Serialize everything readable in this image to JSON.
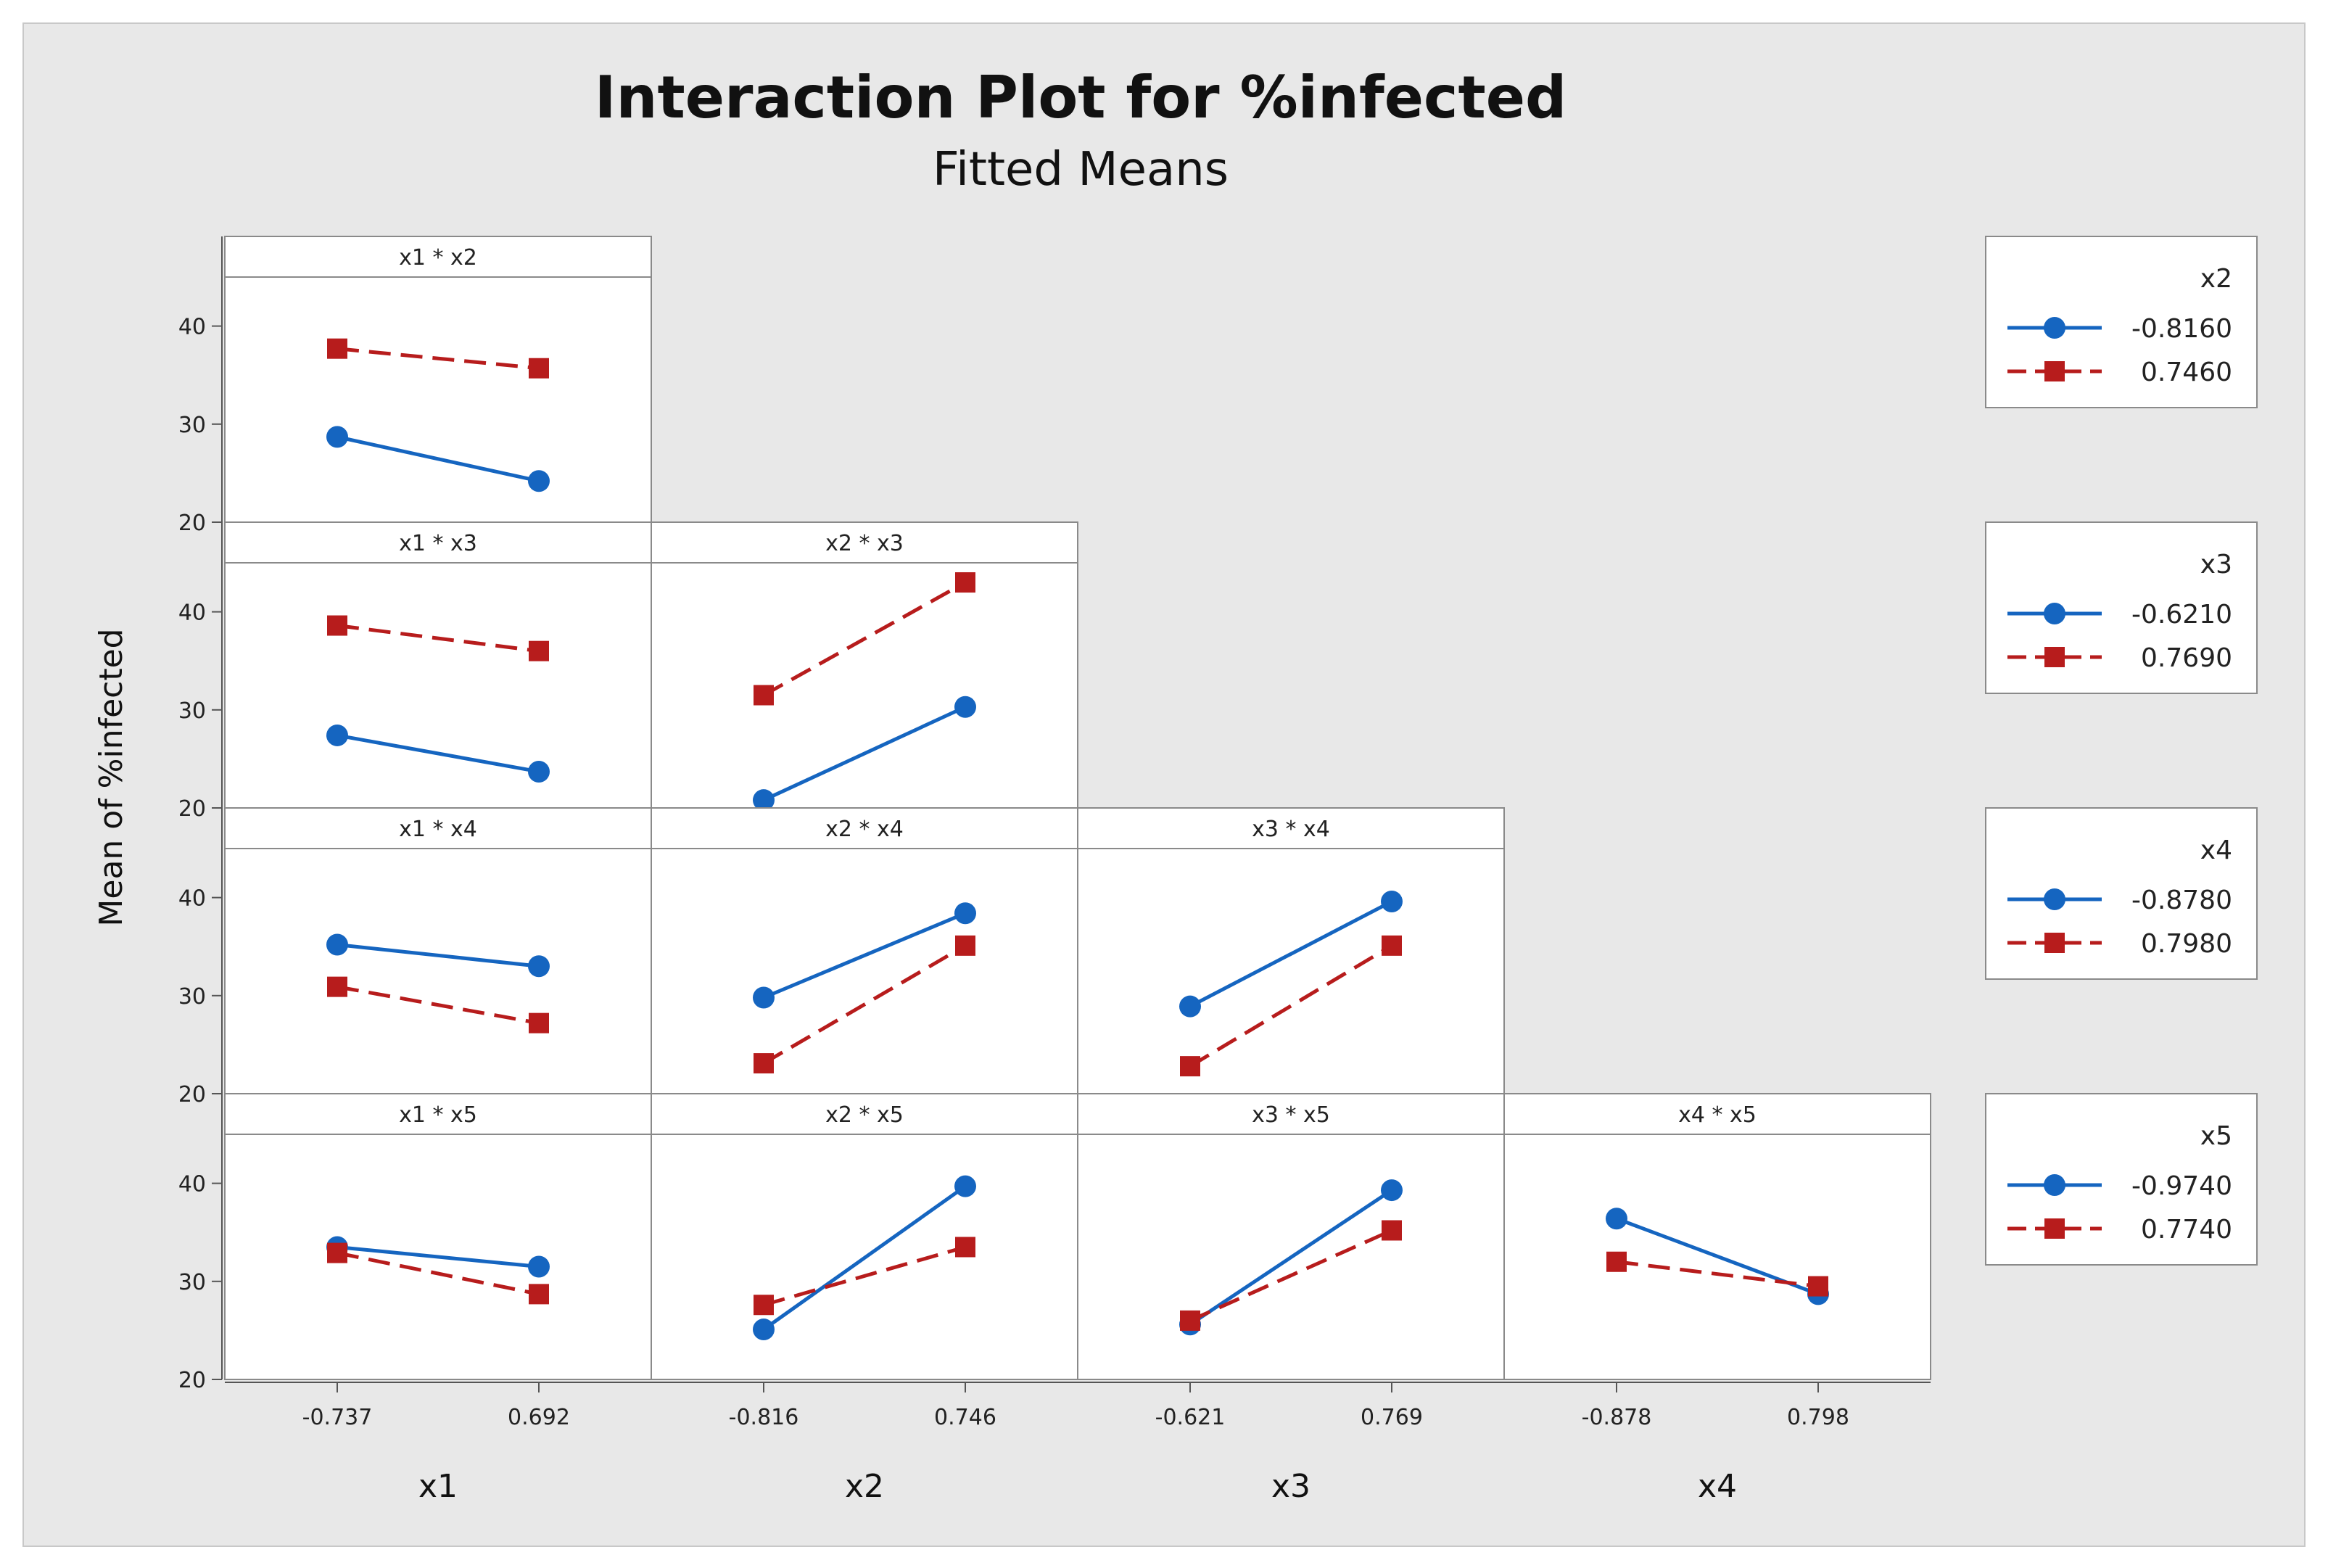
{
  "chart_data": {
    "type": "line",
    "title": "Interaction Plot for %infected",
    "subtitle": "Fitted Means",
    "ylabel": "Mean of %infected",
    "ylim": [
      20,
      45
    ],
    "yticks": [
      20,
      30,
      40
    ],
    "colors": {
      "low": "#1565c0",
      "high": "#b71c1c",
      "background": "#e8e8e8",
      "panel": "#ffffff"
    },
    "factors": [
      {
        "name": "x1",
        "levels": [
          "-0.737",
          "0.692"
        ]
      },
      {
        "name": "x2",
        "levels": [
          "-0.816",
          "0.746"
        ]
      },
      {
        "name": "x3",
        "levels": [
          "-0.621",
          "0.769"
        ]
      },
      {
        "name": "x4",
        "levels": [
          "-0.878",
          "0.798"
        ]
      }
    ],
    "legends": [
      {
        "title": "x2",
        "entries": [
          {
            "label": "-0.8160",
            "style": "low"
          },
          {
            "label": "0.7460",
            "style": "high"
          }
        ]
      },
      {
        "title": "x3",
        "entries": [
          {
            "label": "-0.6210",
            "style": "low"
          },
          {
            "label": "0.7690",
            "style": "high"
          }
        ]
      },
      {
        "title": "x4",
        "entries": [
          {
            "label": "-0.8780",
            "style": "low"
          },
          {
            "label": "0.7980",
            "style": "high"
          }
        ]
      },
      {
        "title": "x5",
        "entries": [
          {
            "label": "-0.9740",
            "style": "low"
          },
          {
            "label": "0.7740",
            "style": "high"
          }
        ]
      }
    ],
    "panels": [
      {
        "row": 0,
        "col": 0,
        "label": "x1 * x2",
        "series": [
          {
            "name": "-0.8160",
            "style": "low",
            "values": [
              28.7,
              24.2
            ]
          },
          {
            "name": "0.7460",
            "style": "high",
            "values": [
              37.7,
              35.7
            ]
          }
        ]
      },
      {
        "row": 1,
        "col": 0,
        "label": "x1 * x3",
        "series": [
          {
            "name": "-0.6210",
            "style": "low",
            "values": [
              27.4,
              23.7
            ]
          },
          {
            "name": "0.7690",
            "style": "high",
            "values": [
              38.6,
              36.0
            ]
          }
        ]
      },
      {
        "row": 1,
        "col": 1,
        "label": "x2 * x3",
        "series": [
          {
            "name": "-0.6210",
            "style": "low",
            "values": [
              20.8,
              30.3
            ]
          },
          {
            "name": "0.7690",
            "style": "high",
            "values": [
              31.5,
              43.0
            ]
          }
        ]
      },
      {
        "row": 2,
        "col": 0,
        "label": "x1 * x4",
        "series": [
          {
            "name": "-0.8780",
            "style": "low",
            "values": [
              35.2,
              33.0
            ]
          },
          {
            "name": "0.7980",
            "style": "high",
            "values": [
              30.9,
              27.2
            ]
          }
        ]
      },
      {
        "row": 2,
        "col": 1,
        "label": "x2 * x4",
        "series": [
          {
            "name": "-0.8780",
            "style": "low",
            "values": [
              29.8,
              38.4
            ]
          },
          {
            "name": "0.7980",
            "style": "high",
            "values": [
              23.1,
              35.1
            ]
          }
        ]
      },
      {
        "row": 2,
        "col": 2,
        "label": "x3 * x4",
        "series": [
          {
            "name": "-0.8780",
            "style": "low",
            "values": [
              28.9,
              39.6
            ]
          },
          {
            "name": "0.7980",
            "style": "high",
            "values": [
              22.8,
              35.1
            ]
          }
        ]
      },
      {
        "row": 3,
        "col": 0,
        "label": "x1 * x5",
        "series": [
          {
            "name": "-0.9740",
            "style": "low",
            "values": [
              33.5,
              31.5
            ]
          },
          {
            "name": "0.7740",
            "style": "high",
            "values": [
              32.9,
              28.7
            ]
          }
        ]
      },
      {
        "row": 3,
        "col": 1,
        "label": "x2 * x5",
        "series": [
          {
            "name": "-0.9740",
            "style": "low",
            "values": [
              25.1,
              39.7
            ]
          },
          {
            "name": "0.7740",
            "style": "high",
            "values": [
              27.6,
              33.5
            ]
          }
        ]
      },
      {
        "row": 3,
        "col": 2,
        "label": "x3 * x5",
        "series": [
          {
            "name": "-0.9740",
            "style": "low",
            "values": [
              25.6,
              39.3
            ]
          },
          {
            "name": "0.7740",
            "style": "high",
            "values": [
              26.0,
              35.2
            ]
          }
        ]
      },
      {
        "row": 3,
        "col": 3,
        "label": "x4 * x5",
        "series": [
          {
            "name": "-0.9740",
            "style": "low",
            "values": [
              36.4,
              28.7
            ]
          },
          {
            "name": "0.7740",
            "style": "high",
            "values": [
              32.0,
              29.5
            ]
          }
        ]
      }
    ]
  }
}
